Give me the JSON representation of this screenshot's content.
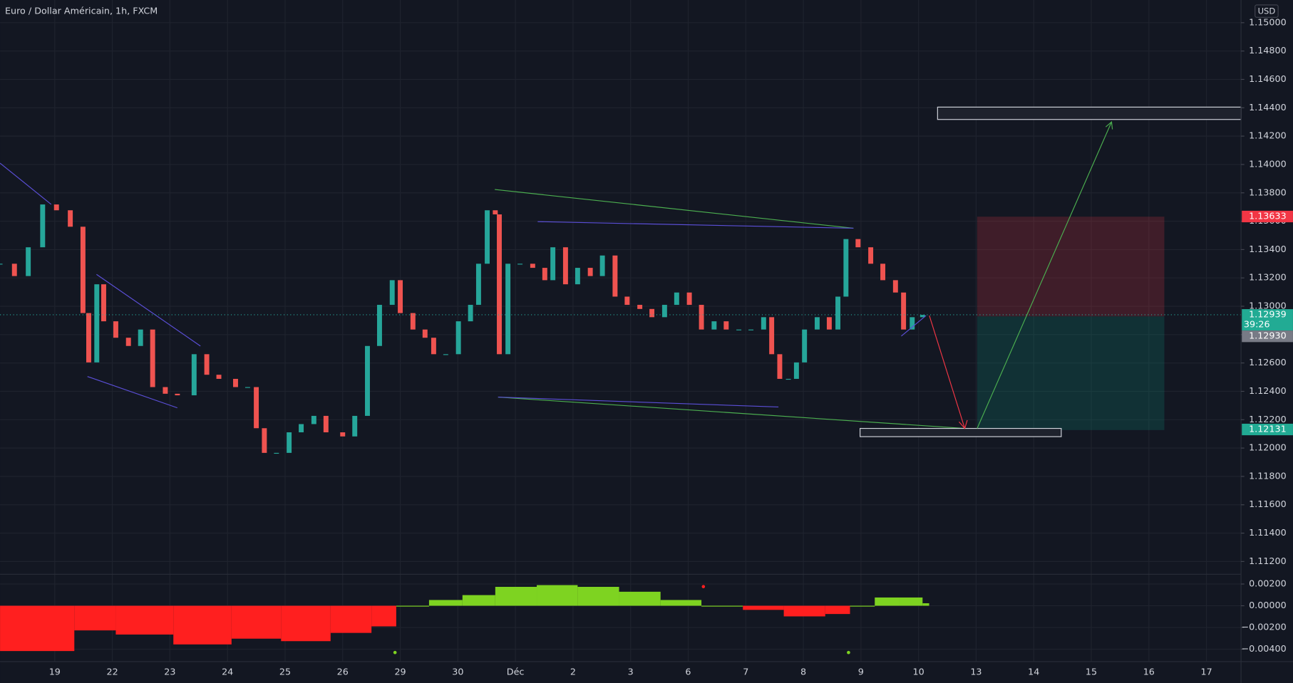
{
  "chart_data": [
    {
      "type": "candlestick",
      "title": "Euro / Dollar Américain, 1h, FXCM",
      "currency": "USD",
      "up_color": "#26a69a",
      "down_color": "#ef5350",
      "grid": true,
      "x": [
        -0.95,
        -0.7,
        -0.46,
        -0.21,
        0.03,
        0.27,
        0.49,
        0.59,
        0.73,
        0.85,
        1.06,
        1.28,
        1.49,
        1.7,
        1.92,
        2.13,
        2.42,
        2.64,
        2.85,
        3.14,
        3.35,
        3.5,
        3.64,
        3.85,
        4.07,
        4.28,
        4.5,
        4.71,
        5.0,
        5.21,
        5.43,
        5.64,
        5.86,
        6.0,
        6.22,
        6.43,
        6.58,
        6.79,
        7.01,
        7.22,
        7.36,
        7.51,
        7.65,
        7.72,
        7.87,
        8.08,
        8.3,
        8.51,
        8.65,
        8.87,
        9.08,
        9.3,
        9.51,
        9.73,
        9.94,
        10.16,
        10.37,
        10.59,
        10.8,
        11.02,
        11.23,
        11.45,
        11.66,
        11.88,
        12.09,
        12.31,
        12.45,
        12.59,
        12.74,
        12.88,
        13.02,
        13.24,
        13.45,
        13.6,
        13.74,
        13.95,
        14.17,
        14.38,
        14.6,
        14.74,
        14.89,
        15.07
      ],
      "values": [
        1.133,
        1.13213,
        1.13416,
        1.13718,
        1.13677,
        1.13561,
        1.12952,
        1.12604,
        1.13155,
        1.12894,
        1.12778,
        1.1272,
        1.12836,
        1.1243,
        1.12383,
        1.12372,
        1.12662,
        1.12517,
        1.12488,
        1.1243,
        1.1243,
        1.1214,
        1.11966,
        1.11966,
        1.12111,
        1.12169,
        1.12227,
        1.12111,
        1.12082,
        1.12227,
        1.1272,
        1.1301,
        1.13184,
        1.12952,
        1.12836,
        1.12778,
        1.12662,
        1.12662,
        1.12894,
        1.1301,
        1.133,
        1.13677,
        1.13648,
        1.12662,
        1.133,
        1.133,
        1.13271,
        1.13184,
        1.13416,
        1.13155,
        1.13271,
        1.13213,
        1.13358,
        1.13068,
        1.1301,
        1.12981,
        1.12923,
        1.1301,
        1.13097,
        1.1301,
        1.12836,
        1.12894,
        1.12836,
        1.12836,
        1.12836,
        1.12923,
        1.12662,
        1.12488,
        1.12488,
        1.12604,
        1.12836,
        1.12923,
        1.12836,
        1.13068,
        1.13474,
        1.13416,
        1.133,
        1.13184,
        1.13097,
        1.12836,
        1.12923,
        1.12939
      ],
      "xlim": [
        -0.95,
        20.6
      ],
      "ylim": [
        1.1111,
        1.1516
      ],
      "xticks": [
        {
          "value": 0,
          "label": "19"
        },
        {
          "value": 1,
          "label": "22"
        },
        {
          "value": 2,
          "label": "23"
        },
        {
          "value": 3,
          "label": "24"
        },
        {
          "value": 4,
          "label": "25"
        },
        {
          "value": 5,
          "label": "26"
        },
        {
          "value": 6,
          "label": "29"
        },
        {
          "value": 7,
          "label": "30"
        },
        {
          "value": 8,
          "label": "Déc"
        },
        {
          "value": 9,
          "label": "2"
        },
        {
          "value": 10,
          "label": "3"
        },
        {
          "value": 11,
          "label": "6"
        },
        {
          "value": 12,
          "label": "7"
        },
        {
          "value": 13,
          "label": "8"
        },
        {
          "value": 14,
          "label": "9"
        },
        {
          "value": 15,
          "label": "10"
        },
        {
          "value": 16,
          "label": "13"
        },
        {
          "value": 17,
          "label": "14"
        },
        {
          "value": 18,
          "label": "15"
        },
        {
          "value": 19,
          "label": "16"
        },
        {
          "value": 20,
          "label": "17"
        }
      ],
      "yticks": [
        {
          "value": 1.112,
          "label": "1.11200"
        },
        {
          "value": 1.114,
          "label": "1.11400"
        },
        {
          "value": 1.116,
          "label": "1.11600"
        },
        {
          "value": 1.118,
          "label": "1.11800"
        },
        {
          "value": 1.12,
          "label": "1.12000"
        },
        {
          "value": 1.122,
          "label": "1.12200"
        },
        {
          "value": 1.124,
          "label": "1.12400"
        },
        {
          "value": 1.126,
          "label": "1.12600"
        },
        {
          "value": 1.128,
          "label": "1.12800"
        },
        {
          "value": 1.13,
          "label": "1.13000"
        },
        {
          "value": 1.132,
          "label": "1.13200"
        },
        {
          "value": 1.134,
          "label": "1.13400"
        },
        {
          "value": 1.136,
          "label": "1.13600"
        },
        {
          "value": 1.138,
          "label": "1.13800"
        },
        {
          "value": 1.14,
          "label": "1.14000"
        },
        {
          "value": 1.142,
          "label": "1.14200"
        },
        {
          "value": 1.144,
          "label": "1.14400"
        },
        {
          "value": 1.146,
          "label": "1.14600"
        },
        {
          "value": 1.148,
          "label": "1.14800"
        },
        {
          "value": 1.15,
          "label": "1.15000"
        }
      ],
      "price_labels": [
        {
          "value": 1.13633,
          "label": "1.13633",
          "color": "#f23645"
        },
        {
          "value": 1.12939,
          "label": "1.12939",
          "color": "#22ab94",
          "countdown": "39:26"
        },
        {
          "value": 1.1293,
          "label": "1.12930",
          "color": "#787b86"
        },
        {
          "value": 1.12131,
          "label": "1.12131",
          "color": "#22ab94"
        }
      ]
    },
    {
      "type": "bar",
      "x": [
        -0.95,
        0.34,
        1.06,
        2.06,
        3.07,
        3.93,
        4.79,
        5.5,
        5.93,
        6.5,
        7.08,
        7.65,
        8.37,
        9.08,
        9.8,
        10.52,
        11.23,
        11.95,
        12.66,
        13.38,
        13.81,
        14.24,
        14.67,
        15.07
      ],
      "values": [
        -0.00417,
        -0.00227,
        -0.00265,
        -0.00356,
        -0.00303,
        -0.00326,
        -0.0025,
        -0.0019,
        0.0,
        0.00053,
        0.00098,
        0.00174,
        0.0019,
        0.00174,
        0.00129,
        0.00053,
        0.0,
        -0.00038,
        -0.00098,
        -0.00076,
        0.0,
        0.00076,
        0.00076,
        0.00023
      ],
      "pos_color": "#7ed321",
      "neg_color": "#ff1f1f",
      "ylim": [
        -0.00514,
        0.0029
      ],
      "yticks": [
        {
          "value": 0.002,
          "label": "0.00200"
        },
        {
          "value": 0,
          "label": "0.00000"
        },
        {
          "value": -0.002,
          "label": "−0.00200"
        },
        {
          "value": -0.004,
          "label": "−0.00400"
        }
      ]
    }
  ]
}
